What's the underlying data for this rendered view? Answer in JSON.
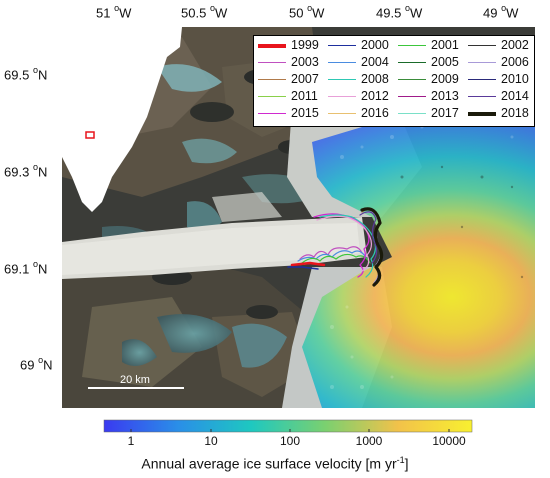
{
  "top_axis": {
    "labels": [
      {
        "deg": "51",
        "unit": "o",
        "dir": "W"
      },
      {
        "deg": "50.5",
        "unit": "o",
        "dir": "W"
      },
      {
        "deg": "50",
        "unit": "o",
        "dir": "W"
      },
      {
        "deg": "49.5",
        "unit": "o",
        "dir": "W"
      },
      {
        "deg": "49",
        "unit": "o",
        "dir": "W"
      }
    ]
  },
  "left_axis": {
    "labels": [
      {
        "deg": "69.5",
        "unit": "o",
        "dir": "N"
      },
      {
        "deg": "69.3",
        "unit": "o",
        "dir": "N"
      },
      {
        "deg": "69.1",
        "unit": "o",
        "dir": "N"
      },
      {
        "deg": "69",
        "unit": "o",
        "dir": "N"
      }
    ]
  },
  "legend": {
    "items": [
      {
        "year": "1999",
        "color": "#e8141c",
        "weight": "thick"
      },
      {
        "year": "2000",
        "color": "#1e2f9e",
        "weight": "thin"
      },
      {
        "year": "2001",
        "color": "#3cc63c",
        "weight": "thin"
      },
      {
        "year": "2002",
        "color": "#333333",
        "weight": "thin"
      },
      {
        "year": "2003",
        "color": "#c050c0",
        "weight": "thin"
      },
      {
        "year": "2004",
        "color": "#4a8ce0",
        "weight": "thin"
      },
      {
        "year": "2005",
        "color": "#1a6b2a",
        "weight": "thin"
      },
      {
        "year": "2006",
        "color": "#a89ad8",
        "weight": "thin"
      },
      {
        "year": "2007",
        "color": "#b07a4a",
        "weight": "thin"
      },
      {
        "year": "2008",
        "color": "#2ec8b4",
        "weight": "thin"
      },
      {
        "year": "2009",
        "color": "#3a8c3a",
        "weight": "thin"
      },
      {
        "year": "2010",
        "color": "#2a2a7a",
        "weight": "thin"
      },
      {
        "year": "2011",
        "color": "#8ad04a",
        "weight": "thin"
      },
      {
        "year": "2012",
        "color": "#e8a0d8",
        "weight": "thin"
      },
      {
        "year": "2013",
        "color": "#a01a8a",
        "weight": "thin"
      },
      {
        "year": "2014",
        "color": "#5a3a9a",
        "weight": "thin"
      },
      {
        "year": "2015",
        "color": "#d02ad0",
        "weight": "thin"
      },
      {
        "year": "2016",
        "color": "#e8c070",
        "weight": "thin"
      },
      {
        "year": "2017",
        "color": "#7ae0c8",
        "weight": "thin"
      },
      {
        "year": "2018",
        "color": "#1a1a0a",
        "weight": "thick"
      }
    ]
  },
  "scale_bar": {
    "label": "20 km"
  },
  "colorbar": {
    "ticks": [
      "1",
      "10",
      "100",
      "1000",
      "10000"
    ],
    "label_main": "Annual average ice surface velocity [m yr",
    "label_sup": "-1",
    "label_end": "]",
    "scale": "log",
    "range": [
      1,
      20000
    ],
    "colormap": [
      "#3a3af0",
      "#2a8ee8",
      "#1ec8c0",
      "#7ad070",
      "#f2c24a",
      "#f8f030"
    ]
  }
}
